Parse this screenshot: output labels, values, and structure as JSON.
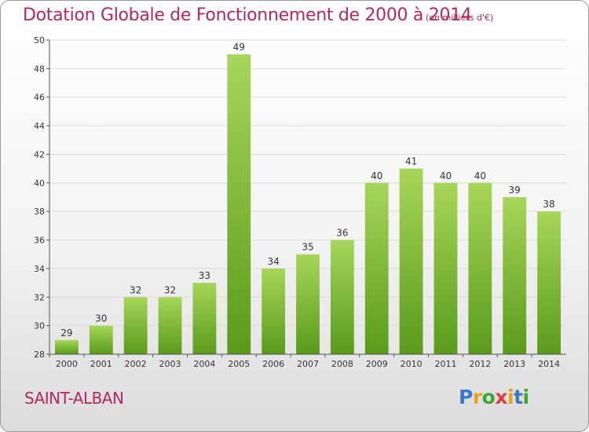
{
  "header": {
    "title": "Dotation Globale de Fonctionnement de 2000 à 2014",
    "unit": "(en milliers d'€)"
  },
  "commune": "SAINT-ALBAN",
  "logo": {
    "text": "Proxiti",
    "letter_colors": [
      "#3a78c9",
      "#e8a21a",
      "#3fa535",
      "#e03c3c",
      "#e8a21a",
      "#3a78c9",
      "#3fa535"
    ]
  },
  "chart_data": {
    "type": "bar",
    "categories": [
      "2000",
      "2001",
      "2002",
      "2003",
      "2004",
      "2005",
      "2006",
      "2007",
      "2008",
      "2009",
      "2010",
      "2011",
      "2012",
      "2013",
      "2014"
    ],
    "values": [
      29,
      30,
      32,
      32,
      33,
      49,
      34,
      35,
      36,
      40,
      41,
      40,
      40,
      39,
      38
    ],
    "title": "Dotation Globale de Fonctionnement de 2000 à 2014",
    "subtitle": "(en milliers d'€)",
    "ylim": [
      28,
      50
    ],
    "yticks": [
      28,
      30,
      32,
      34,
      36,
      38,
      40,
      42,
      44,
      46,
      48,
      50
    ],
    "grid": "horizontal",
    "colors": {
      "bar_light": "#a6d65a",
      "bar_dark": "#5a9a1a",
      "grid": "#dcdcdc"
    }
  }
}
